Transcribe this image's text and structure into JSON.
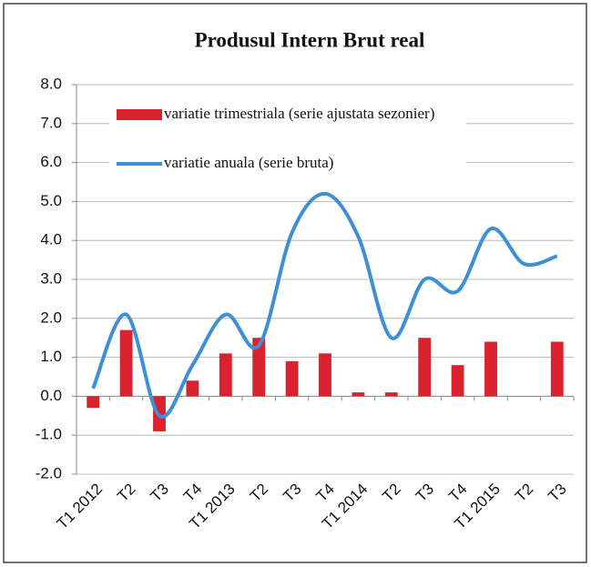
{
  "chart_data": {
    "type": "bar-line",
    "title": "Produsul Intern Brut real",
    "categories": [
      "T1 2012",
      "T2",
      "T3",
      "T4",
      "T1 2013",
      "T2",
      "T3",
      "T4",
      "T1 2014",
      "T2",
      "T3",
      "T4",
      "T1 2015",
      "T2",
      "T3"
    ],
    "series": [
      {
        "name": "variatie trimestriala (serie ajustata sezonier)",
        "type": "bar",
        "color": "#d9222e",
        "values": [
          -0.3,
          1.7,
          -0.9,
          0.4,
          1.1,
          1.5,
          0.9,
          1.1,
          0.1,
          0.1,
          1.5,
          0.8,
          1.4,
          0,
          1.4
        ]
      },
      {
        "name": "variatie anuala (serie bruta)",
        "type": "line",
        "color": "#3d8fd6",
        "values": [
          0.2,
          2.1,
          -0.5,
          0.8,
          2.1,
          1.3,
          4.2,
          5.2,
          4.1,
          1.5,
          3.0,
          2.7,
          4.3,
          3.4,
          3.6
        ]
      }
    ],
    "ylim": [
      -2,
      8
    ],
    "yticks": [
      {
        "value": -2,
        "label": "-2.0"
      },
      {
        "value": -1,
        "label": "-1.0"
      },
      {
        "value": 0,
        "label": "0.0"
      },
      {
        "value": 1,
        "label": "1.0"
      },
      {
        "value": 2,
        "label": "2.0"
      },
      {
        "value": 3,
        "label": "3.0"
      },
      {
        "value": 4,
        "label": "4.0"
      },
      {
        "value": 5,
        "label": "5.0"
      },
      {
        "value": 6,
        "label": "6.0"
      },
      {
        "value": 7,
        "label": "7.0"
      },
      {
        "value": 8,
        "label": "8.0"
      }
    ],
    "grid": true
  }
}
